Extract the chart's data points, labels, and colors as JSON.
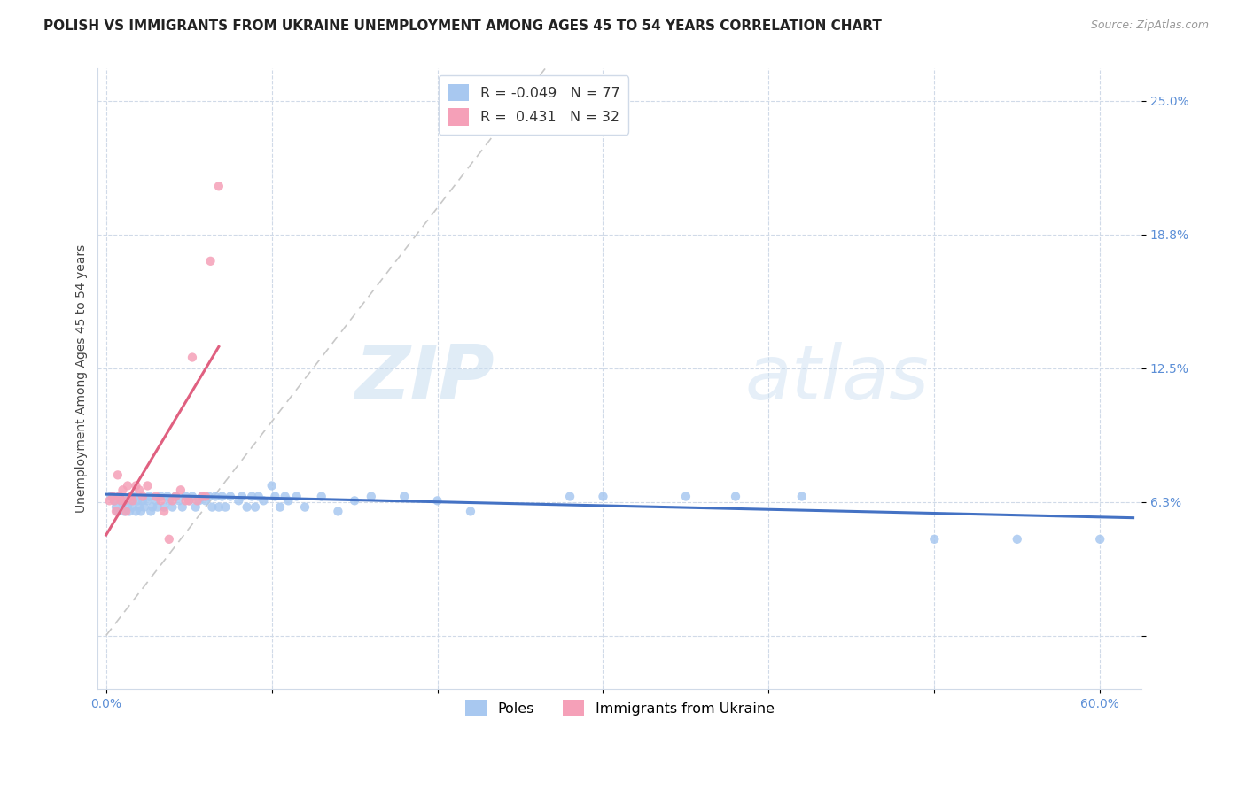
{
  "title": "POLISH VS IMMIGRANTS FROM UKRAINE UNEMPLOYMENT AMONG AGES 45 TO 54 YEARS CORRELATION CHART",
  "source": "Source: ZipAtlas.com",
  "ylabel": "Unemployment Among Ages 45 to 54 years",
  "x_ticks": [
    0.0,
    0.1,
    0.2,
    0.3,
    0.4,
    0.5,
    0.6
  ],
  "x_tick_labels": [
    "0.0%",
    "",
    "",
    "",
    "",
    "",
    "60.0%"
  ],
  "y_ticks": [
    0.0,
    0.0625,
    0.125,
    0.1875,
    0.25
  ],
  "y_tick_labels": [
    "",
    "6.3%",
    "12.5%",
    "18.8%",
    "25.0%"
  ],
  "xlim": [
    -0.005,
    0.625
  ],
  "ylim": [
    -0.025,
    0.265
  ],
  "poles_color": "#a8c8f0",
  "ukraine_color": "#f5a0b8",
  "poles_trend_color": "#4472c4",
  "ukraine_trend_color": "#e06080",
  "reference_line_color": "#c8c8c8",
  "legend_R_poles": "-0.049",
  "legend_N_poles": "77",
  "legend_R_ukraine": "0.431",
  "legend_N_ukraine": "32",
  "poles_label": "Poles",
  "ukraine_label": "Immigrants from Ukraine",
  "watermark_zip": "ZIP",
  "watermark_atlas": "atlas",
  "title_fontsize": 11,
  "axis_label_fontsize": 10,
  "tick_fontsize": 10,
  "poles_data_x": [
    0.003,
    0.005,
    0.006,
    0.007,
    0.008,
    0.009,
    0.01,
    0.011,
    0.012,
    0.013,
    0.014,
    0.015,
    0.016,
    0.017,
    0.018,
    0.019,
    0.02,
    0.021,
    0.022,
    0.023,
    0.025,
    0.026,
    0.027,
    0.028,
    0.03,
    0.031,
    0.033,
    0.035,
    0.037,
    0.038,
    0.04,
    0.042,
    0.044,
    0.046,
    0.048,
    0.05,
    0.052,
    0.054,
    0.056,
    0.058,
    0.06,
    0.062,
    0.064,
    0.066,
    0.068,
    0.07,
    0.072,
    0.075,
    0.08,
    0.082,
    0.085,
    0.088,
    0.09,
    0.092,
    0.095,
    0.1,
    0.102,
    0.105,
    0.108,
    0.11,
    0.115,
    0.12,
    0.13,
    0.14,
    0.15,
    0.16,
    0.18,
    0.2,
    0.22,
    0.28,
    0.3,
    0.35,
    0.38,
    0.42,
    0.5,
    0.55,
    0.6
  ],
  "poles_data_y": [
    0.065,
    0.063,
    0.06,
    0.058,
    0.065,
    0.063,
    0.062,
    0.058,
    0.063,
    0.06,
    0.058,
    0.063,
    0.06,
    0.065,
    0.058,
    0.063,
    0.06,
    0.058,
    0.063,
    0.06,
    0.063,
    0.065,
    0.058,
    0.06,
    0.063,
    0.06,
    0.065,
    0.06,
    0.065,
    0.063,
    0.06,
    0.065,
    0.063,
    0.06,
    0.065,
    0.063,
    0.065,
    0.06,
    0.063,
    0.065,
    0.063,
    0.065,
    0.06,
    0.065,
    0.06,
    0.065,
    0.06,
    0.065,
    0.063,
    0.065,
    0.06,
    0.065,
    0.06,
    0.065,
    0.063,
    0.07,
    0.065,
    0.06,
    0.065,
    0.063,
    0.065,
    0.06,
    0.065,
    0.058,
    0.063,
    0.065,
    0.065,
    0.063,
    0.058,
    0.065,
    0.065,
    0.065,
    0.065,
    0.065,
    0.045,
    0.045,
    0.045
  ],
  "ukraine_data_x": [
    0.002,
    0.004,
    0.005,
    0.006,
    0.007,
    0.008,
    0.009,
    0.01,
    0.011,
    0.012,
    0.013,
    0.015,
    0.016,
    0.018,
    0.02,
    0.022,
    0.025,
    0.03,
    0.033,
    0.035,
    0.038,
    0.04,
    0.042,
    0.045,
    0.048,
    0.05,
    0.052,
    0.055,
    0.058,
    0.06,
    0.063,
    0.068
  ],
  "ukraine_data_y": [
    0.063,
    0.065,
    0.063,
    0.058,
    0.075,
    0.065,
    0.063,
    0.068,
    0.063,
    0.058,
    0.07,
    0.065,
    0.063,
    0.07,
    0.068,
    0.065,
    0.07,
    0.065,
    0.063,
    0.058,
    0.045,
    0.063,
    0.065,
    0.068,
    0.063,
    0.063,
    0.13,
    0.063,
    0.065,
    0.065,
    0.175,
    0.21
  ],
  "poles_trend_start_x": 0.0,
  "poles_trend_end_x": 0.62,
  "poles_trend_start_y": 0.066,
  "poles_trend_end_y": 0.055,
  "ukraine_trend_start_x": 0.0,
  "ukraine_trend_end_x": 0.068,
  "ukraine_trend_start_y": 0.047,
  "ukraine_trend_end_y": 0.135
}
